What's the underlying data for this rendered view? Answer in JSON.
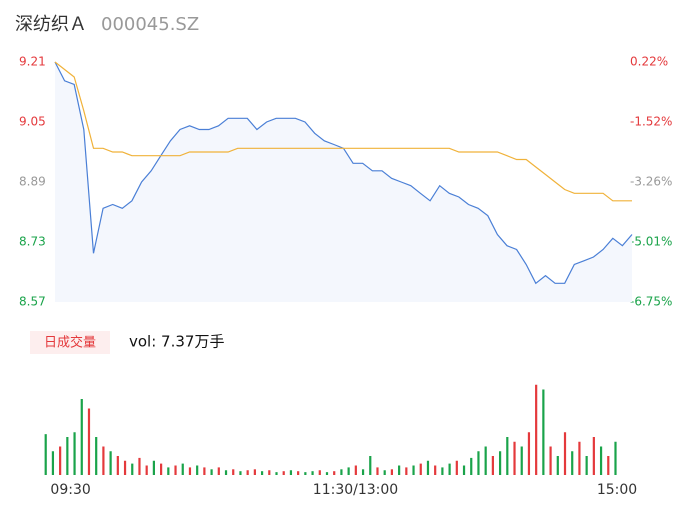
{
  "header": {
    "name": "深纺织Ａ",
    "code": "000045.SZ"
  },
  "chart_data": [
    {
      "type": "line",
      "xlim": [
        0,
        60
      ],
      "ylim": [
        8.57,
        9.21
      ],
      "yticks": [
        9.21,
        9.05,
        8.89,
        8.73,
        8.57
      ],
      "ytick_colors": [
        "#e4393c",
        "#e4393c",
        "#999999",
        "#1aa34a",
        "#1aa34a"
      ],
      "y2lim": [
        -6.75,
        0.22
      ],
      "y2ticks": [
        {
          "value": 0.22,
          "label": "0.22%"
        },
        {
          "value": -1.52,
          "label": "-1.52%"
        },
        {
          "value": -3.26,
          "label": "-3.26%"
        },
        {
          "value": -5.01,
          "label": "-5.01%"
        },
        {
          "value": -6.75,
          "label": "-6.75%"
        }
      ],
      "y2tick_colors": [
        "#e4393c",
        "#e4393c",
        "#999999",
        "#1aa34a",
        "#1aa34a"
      ],
      "series": [
        {
          "color": "#4a7fd6",
          "fill": "#f4f7fd",
          "values": [
            9.21,
            9.16,
            9.15,
            9.03,
            8.7,
            8.82,
            8.83,
            8.82,
            8.84,
            8.89,
            8.92,
            8.96,
            9.0,
            9.03,
            9.04,
            9.03,
            9.03,
            9.04,
            9.06,
            9.06,
            9.06,
            9.03,
            9.05,
            9.06,
            9.06,
            9.06,
            9.05,
            9.02,
            9.0,
            8.99,
            8.98,
            8.94,
            8.94,
            8.92,
            8.92,
            8.9,
            8.89,
            8.88,
            8.86,
            8.84,
            8.88,
            8.86,
            8.85,
            8.83,
            8.82,
            8.8,
            8.75,
            8.72,
            8.71,
            8.67,
            8.62,
            8.64,
            8.62,
            8.62,
            8.67,
            8.68,
            8.69,
            8.71,
            8.74,
            8.72,
            8.75
          ]
        },
        {
          "color": "#f0b23a",
          "values": [
            9.21,
            9.19,
            9.17,
            9.08,
            8.98,
            8.98,
            8.97,
            8.97,
            8.96,
            8.96,
            8.96,
            8.96,
            8.96,
            8.96,
            8.97,
            8.97,
            8.97,
            8.97,
            8.97,
            8.98,
            8.98,
            8.98,
            8.98,
            8.98,
            8.98,
            8.98,
            8.98,
            8.98,
            8.98,
            8.98,
            8.98,
            8.98,
            8.98,
            8.98,
            8.98,
            8.98,
            8.98,
            8.98,
            8.98,
            8.98,
            8.98,
            8.98,
            8.97,
            8.97,
            8.97,
            8.97,
            8.97,
            8.96,
            8.95,
            8.95,
            8.93,
            8.91,
            8.89,
            8.87,
            8.86,
            8.86,
            8.86,
            8.86,
            8.84,
            8.84,
            8.84
          ]
        }
      ]
    },
    {
      "type": "bar",
      "label": "日成交量",
      "vol_text": "vol: 7.37万手",
      "ylim": [
        0,
        100
      ],
      "xticks": [
        {
          "value": 0,
          "label": "09:30"
        },
        {
          "value": 39.5,
          "label": "11:30/13:00"
        },
        {
          "value": 79,
          "label": "15:00"
        }
      ],
      "values": [
        43,
        25,
        30,
        40,
        45,
        80,
        70,
        40,
        30,
        25,
        20,
        15,
        12,
        18,
        10,
        15,
        12,
        8,
        10,
        12,
        8,
        10,
        8,
        6,
        8,
        5,
        6,
        4,
        5,
        6,
        4,
        5,
        3,
        4,
        5,
        4,
        3,
        4,
        5,
        3,
        4,
        6,
        8,
        10,
        6,
        20,
        8,
        5,
        6,
        10,
        8,
        10,
        12,
        15,
        10,
        8,
        12,
        15,
        10,
        18,
        25,
        30,
        20,
        25,
        40,
        35,
        30,
        45,
        95,
        90,
        30,
        20,
        45,
        25,
        35,
        20,
        40,
        30,
        20,
        35
      ],
      "colors": [
        "#1aa34a",
        "#1aa34a",
        "#e4393c",
        "#1aa34a",
        "#1aa34a",
        "#1aa34a",
        "#e4393c",
        "#1aa34a",
        "#e4393c",
        "#1aa34a",
        "#e4393c",
        "#e4393c",
        "#1aa34a",
        "#e4393c",
        "#e4393c",
        "#1aa34a",
        "#e4393c",
        "#1aa34a",
        "#e4393c",
        "#1aa34a",
        "#e4393c",
        "#1aa34a",
        "#e4393c",
        "#1aa34a",
        "#e4393c",
        "#1aa34a",
        "#e4393c",
        "#1aa34a",
        "#e4393c",
        "#e4393c",
        "#1aa34a",
        "#e4393c",
        "#1aa34a",
        "#e4393c",
        "#1aa34a",
        "#e4393c",
        "#1aa34a",
        "#1aa34a",
        "#e4393c",
        "#1aa34a",
        "#e4393c",
        "#1aa34a",
        "#1aa34a",
        "#e4393c",
        "#1aa34a",
        "#1aa34a",
        "#e4393c",
        "#1aa34a",
        "#e4393c",
        "#1aa34a",
        "#e4393c",
        "#1aa34a",
        "#e4393c",
        "#1aa34a",
        "#e4393c",
        "#1aa34a",
        "#1aa34a",
        "#e4393c",
        "#1aa34a",
        "#1aa34a",
        "#1aa34a",
        "#1aa34a",
        "#e4393c",
        "#1aa34a",
        "#1aa34a",
        "#e4393c",
        "#1aa34a",
        "#e4393c",
        "#e4393c",
        "#1aa34a",
        "#e4393c",
        "#1aa34a",
        "#e4393c",
        "#1aa34a",
        "#e4393c",
        "#1aa34a",
        "#e4393c",
        "#1aa34a",
        "#e4393c",
        "#1aa34a"
      ]
    }
  ]
}
